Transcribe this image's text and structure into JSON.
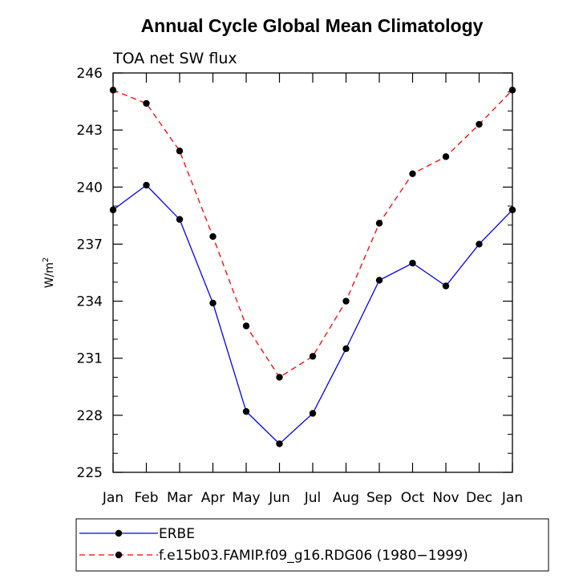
{
  "chart_data": {
    "type": "line",
    "title": "Annual Cycle Global Mean Climatology",
    "subtitle": "TOA net SW flux",
    "ylabel": "W/m",
    "ylabel_superscript": "2",
    "xlabel": "",
    "categories": [
      "Jan",
      "Feb",
      "Mar",
      "Apr",
      "May",
      "Jun",
      "Jul",
      "Aug",
      "Sep",
      "Oct",
      "Nov",
      "Dec",
      "Jan"
    ],
    "ylim": [
      225,
      246
    ],
    "yticks": [
      225,
      228,
      231,
      234,
      237,
      240,
      243,
      246
    ],
    "grid": false,
    "legend_position": "bottom",
    "series": [
      {
        "name": "ERBE",
        "color": "#0000ff",
        "style": "solid",
        "marker": "circle",
        "values": [
          238.8,
          240.1,
          238.3,
          233.9,
          228.2,
          226.5,
          228.1,
          231.5,
          235.1,
          236.0,
          234.8,
          237.0,
          238.8
        ]
      },
      {
        "name": "f.e15b03.FAMIP.f09_g16.RDG06 (1980−1999)",
        "color": "#ff0000",
        "style": "dashed",
        "marker": "circle",
        "values": [
          245.1,
          244.4,
          241.9,
          237.4,
          232.7,
          230.0,
          231.1,
          234.0,
          238.1,
          240.7,
          241.6,
          243.3,
          245.1
        ]
      }
    ]
  }
}
